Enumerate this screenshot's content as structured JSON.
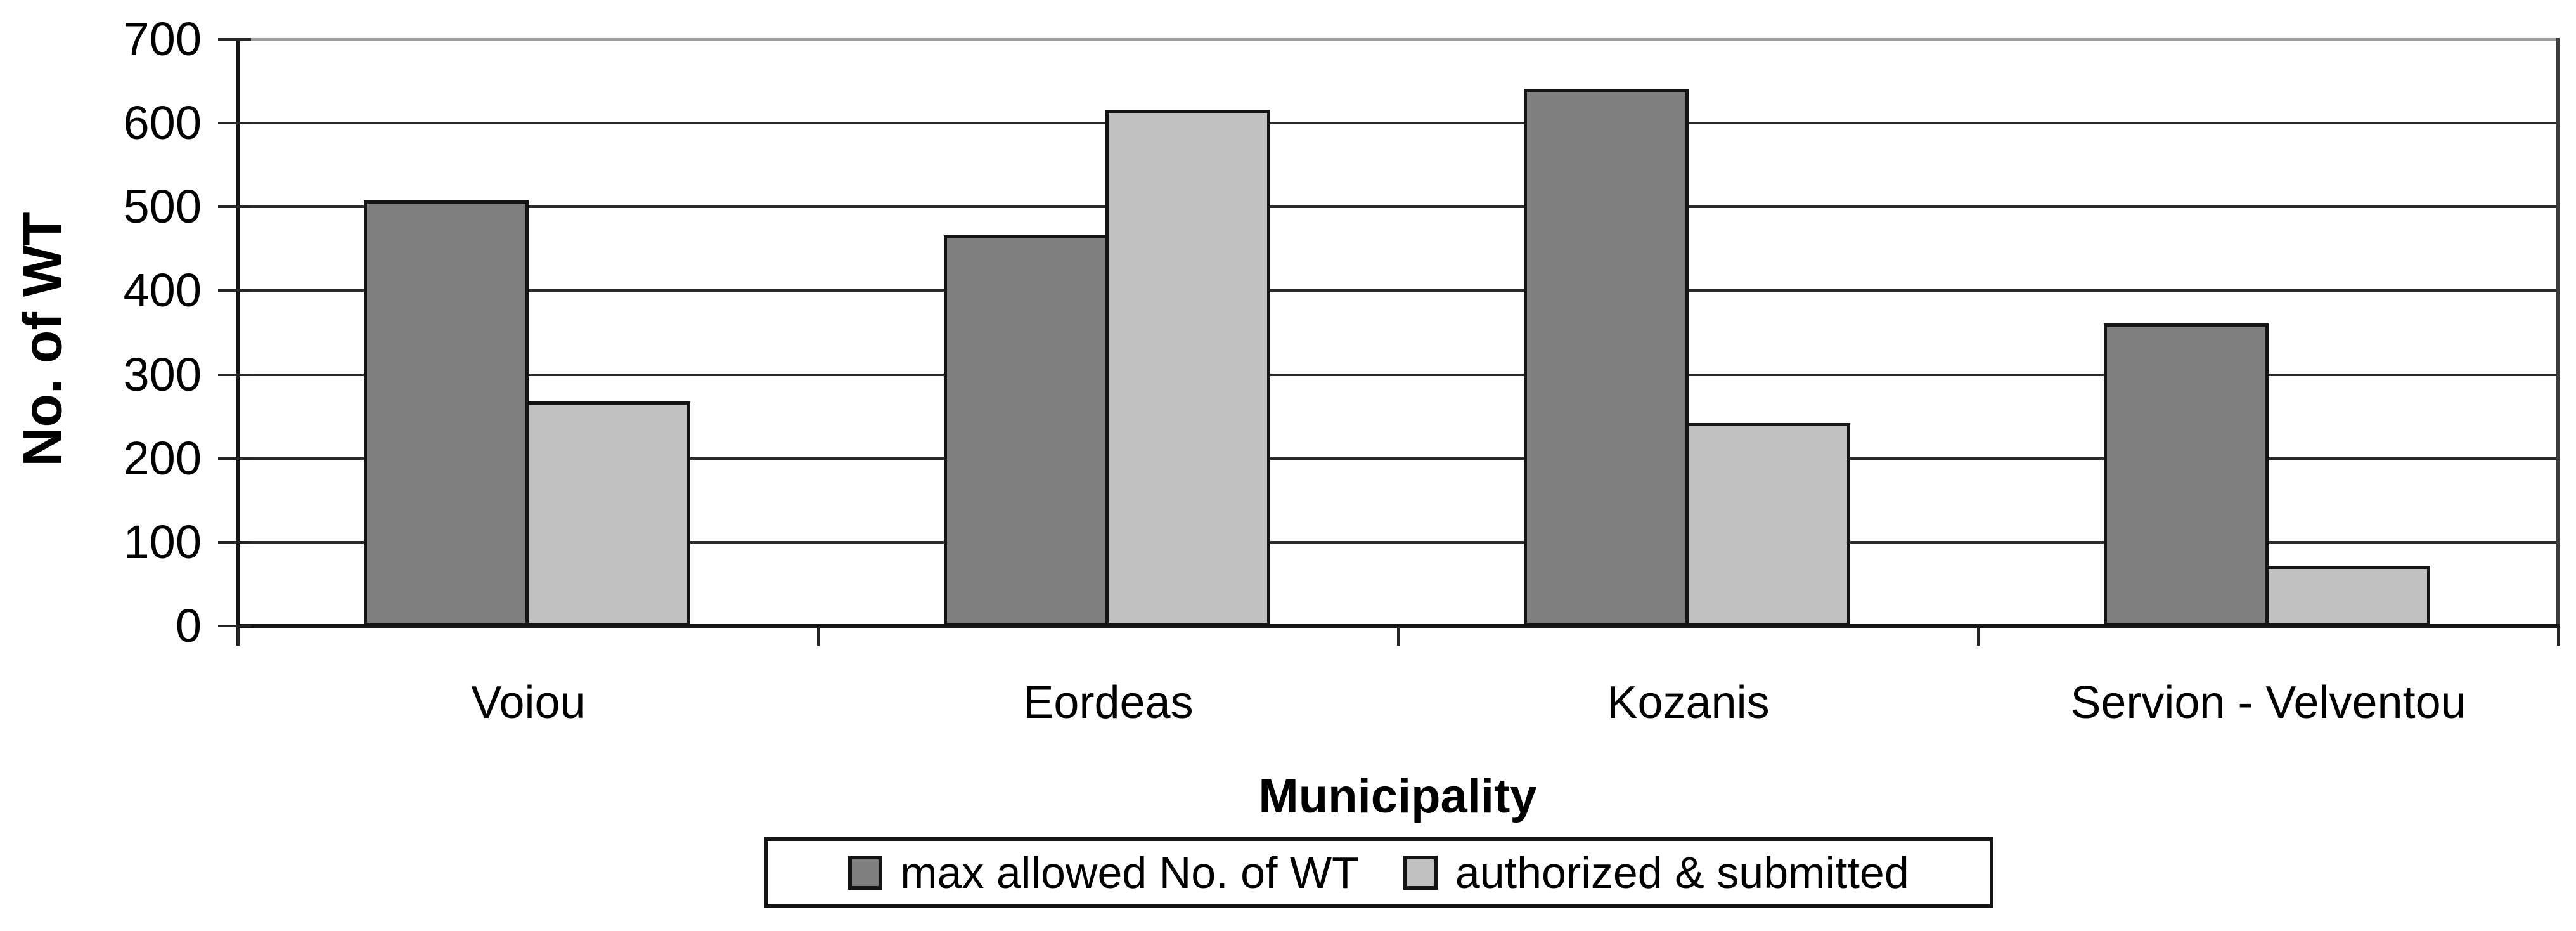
{
  "chart_data": {
    "type": "bar",
    "title": "",
    "categories": [
      "Voiou",
      "Eordeas",
      "Kozanis",
      "Servion - Velventou"
    ],
    "series": [
      {
        "name": "max allowed No. of WT",
        "color": "#7f7f7f",
        "values": [
          508,
          466,
          641,
          361
        ]
      },
      {
        "name": "authorized & submitted",
        "color": "#c1c1c1",
        "values": [
          268,
          616,
          242,
          72
        ]
      }
    ],
    "xlabel": "Municipality",
    "ylabel": "No. of WT",
    "ylim": [
      0,
      700
    ],
    "yticks": [
      0,
      100,
      200,
      300,
      400,
      500,
      600,
      700
    ],
    "grid": true,
    "legend_position": "bottom",
    "colors": {
      "plot_background": "#ffffff",
      "gridline": "#2a2a2a",
      "axis": "#141414",
      "plot_top_border": "#9c9c9c",
      "plot_right_border": "#3c3c3c",
      "bar_border": "#141414",
      "text": "#000000"
    }
  }
}
